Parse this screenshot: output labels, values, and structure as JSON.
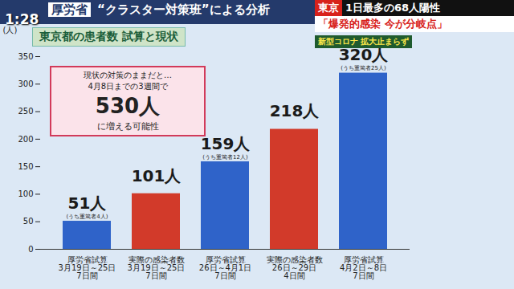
{
  "chart_data": {
    "type": "bar",
    "title": "東京都の患者数 試算と現状",
    "subtitle_box": "厚労省",
    "subtitle": "“クラスター対策班”による分析",
    "screen_texts": {
      "clock": "1:28",
      "place": "東京",
      "headline": "1日最多の68人陽性",
      "quote": "「爆発的感染 今が分岐点」",
      "tag": "新型コロナ 拡大止まらず"
    },
    "annotations": [
      "現状の対策のままだと…\n4月8日までの3週間で",
      "530人",
      "に増える可能性"
    ],
    "categories": [
      "厚労省試算\n3月19日～25日\n7日間",
      "実際の感染者数\n3月19日～25日\n7日間",
      "厚労省試算\n26日～4月1日\n7日間",
      "実際の感染者数\n26日～29日\n4日間",
      "厚労省試算\n4月2日～8日\n7日間"
    ],
    "values": [
      51,
      101,
      159,
      218,
      320
    ],
    "value_labels": [
      "51人",
      "101人",
      "159人",
      "218人",
      "320人"
    ],
    "value_notes": [
      "(うち重篤者4人)",
      null,
      "(うち重篤者12人)",
      null,
      "(うち重篤者25人)"
    ],
    "colors": [
      "#2f63c9",
      "#d23a2a",
      "#2f63c9",
      "#d23a2a",
      "#2f63c9"
    ],
    "ylabel": "(人)",
    "ylim": [
      0,
      350
    ],
    "yticks": [
      0,
      50,
      100,
      150,
      200,
      250,
      300,
      350
    ],
    "grid": false,
    "data_labels": true
  }
}
